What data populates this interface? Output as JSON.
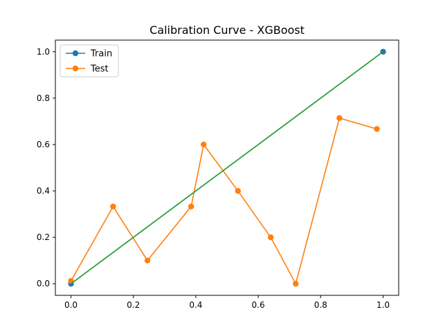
{
  "chart_data": {
    "type": "line",
    "title": "Calibration Curve - XGBoost",
    "xlabel": "",
    "ylabel": "",
    "xlim": [
      -0.05,
      1.05
    ],
    "ylim": [
      -0.05,
      1.05
    ],
    "xticks": [
      "0.0",
      "0.2",
      "0.4",
      "0.6",
      "0.8",
      "1.0"
    ],
    "yticks": [
      "0.0",
      "0.2",
      "0.4",
      "0.6",
      "0.8",
      "1.0"
    ],
    "grid": false,
    "legend_position": "top-left",
    "series": [
      {
        "name": "Train",
        "color": "#1f77b4",
        "marker": "circle",
        "x": [
          0.0,
          1.0
        ],
        "y": [
          0.0,
          1.0
        ]
      },
      {
        "name": "Test",
        "color": "#ff7f0e",
        "marker": "circle",
        "x": [
          0.0,
          0.135,
          0.245,
          0.385,
          0.425,
          0.535,
          0.64,
          0.72,
          0.86,
          0.98
        ],
        "y": [
          0.012,
          0.333,
          0.1,
          0.333,
          0.6,
          0.4,
          0.2,
          0.0,
          0.714,
          0.667
        ]
      }
    ],
    "reference_line": {
      "color": "#2ca02c",
      "x": [
        0.0,
        1.0
      ],
      "y": [
        0.0,
        1.0
      ]
    }
  }
}
